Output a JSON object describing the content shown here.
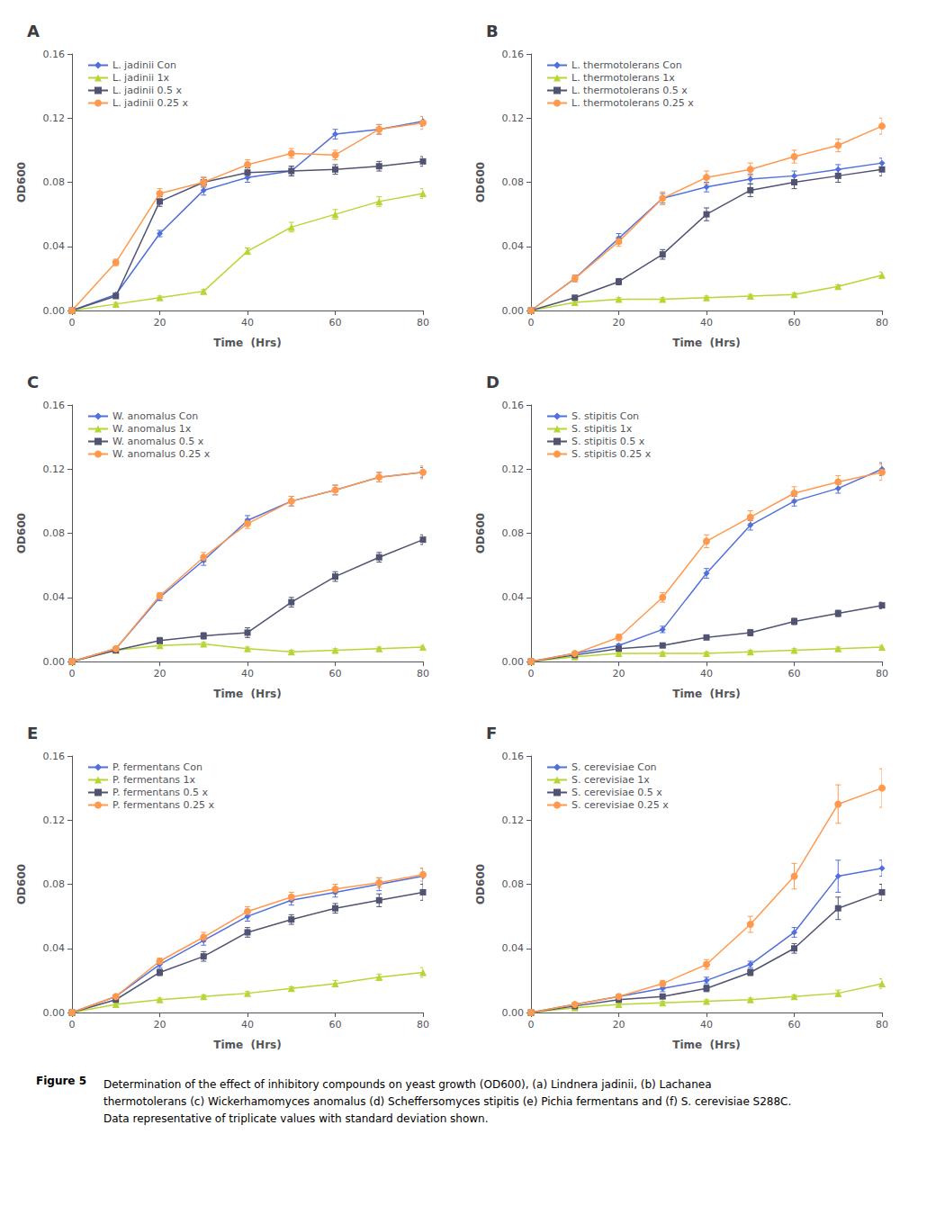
{
  "chart_data": [
    {
      "type": "line",
      "title": "A",
      "xlabel": "Time  (Hrs)",
      "ylabel": "OD600",
      "x": [
        0,
        10,
        20,
        30,
        40,
        50,
        60,
        70,
        80
      ],
      "xlim": [
        0,
        80
      ],
      "xticks": [
        0,
        20,
        40,
        60,
        80
      ],
      "ylim": [
        0,
        0.16
      ],
      "yticks": [
        {
          "value": 0,
          "label": "0.00"
        },
        0.04,
        0.08,
        0.12,
        0.16
      ],
      "grid": false,
      "legend": "upper left",
      "series": [
        {
          "name": "L. jadinii Con",
          "marker": "diamond",
          "values": [
            0,
            0.01,
            0.048,
            0.075,
            0.083,
            0.087,
            0.11,
            0.113,
            0.118
          ],
          "errors": [
            0,
            0.001,
            0.002,
            0.003,
            0.003,
            0.003,
            0.003,
            0.003,
            0.003
          ]
        },
        {
          "name": "L. jadinii 1x",
          "marker": "triangle",
          "values": [
            0,
            0.004,
            0.008,
            0.012,
            0.037,
            0.052,
            0.06,
            0.068,
            0.073
          ],
          "errors": [
            0,
            0.001,
            0.001,
            0.001,
            0.002,
            0.003,
            0.003,
            0.003,
            0.003
          ]
        },
        {
          "name": "L. jadinii 0.5 x",
          "marker": "square",
          "values": [
            0,
            0.009,
            0.068,
            0.08,
            0.086,
            0.087,
            0.088,
            0.09,
            0.093
          ],
          "errors": [
            0,
            0.001,
            0.003,
            0.003,
            0.003,
            0.003,
            0.003,
            0.003,
            0.003
          ]
        },
        {
          "name": "L. jadinii 0.25 x",
          "marker": "circle",
          "values": [
            0,
            0.03,
            0.073,
            0.08,
            0.091,
            0.098,
            0.097,
            0.113,
            0.117
          ],
          "errors": [
            0,
            0.002,
            0.003,
            0.003,
            0.003,
            0.003,
            0.003,
            0.003,
            0.004
          ]
        }
      ]
    },
    {
      "type": "line",
      "title": "B",
      "xlabel": "Time  (Hrs)",
      "ylabel": "OD600",
      "x": [
        0,
        10,
        20,
        30,
        40,
        50,
        60,
        70,
        80
      ],
      "xlim": [
        0,
        80
      ],
      "xticks": [
        0,
        20,
        40,
        60,
        80
      ],
      "ylim": [
        0,
        0.16
      ],
      "yticks": [
        {
          "value": 0,
          "label": "0.00"
        },
        0.04,
        0.08,
        0.12,
        0.16
      ],
      "grid": false,
      "legend": "upper left",
      "series": [
        {
          "name": "L. thermotolerans Con",
          "marker": "diamond",
          "values": [
            0,
            0.02,
            0.045,
            0.07,
            0.077,
            0.082,
            0.084,
            0.088,
            0.092
          ],
          "errors": [
            0,
            0.002,
            0.003,
            0.003,
            0.003,
            0.003,
            0.003,
            0.003,
            0.003
          ]
        },
        {
          "name": "L. thermotolerans 1x",
          "marker": "triangle",
          "values": [
            0,
            0.005,
            0.007,
            0.007,
            0.008,
            0.009,
            0.01,
            0.015,
            0.022
          ],
          "errors": [
            0,
            0.001,
            0.001,
            0.001,
            0.001,
            0.001,
            0.001,
            0.001,
            0.002
          ]
        },
        {
          "name": "L. thermotolerans 0.5 x",
          "marker": "square",
          "values": [
            0,
            0.008,
            0.018,
            0.035,
            0.06,
            0.075,
            0.08,
            0.084,
            0.088
          ],
          "errors": [
            0,
            0.001,
            0.002,
            0.003,
            0.004,
            0.004,
            0.004,
            0.004,
            0.004
          ]
        },
        {
          "name": "L. thermotolerans 0.25 x",
          "marker": "circle",
          "values": [
            0,
            0.02,
            0.043,
            0.07,
            0.083,
            0.088,
            0.096,
            0.103,
            0.115
          ],
          "errors": [
            0,
            0.002,
            0.003,
            0.004,
            0.004,
            0.004,
            0.004,
            0.004,
            0.005
          ]
        }
      ]
    },
    {
      "type": "line",
      "title": "C",
      "xlabel": "Time  (Hrs)",
      "ylabel": "OD600",
      "x": [
        0,
        10,
        20,
        30,
        40,
        50,
        60,
        70,
        80
      ],
      "xlim": [
        0,
        80
      ],
      "xticks": [
        0,
        20,
        40,
        60,
        80
      ],
      "ylim": [
        0,
        0.16
      ],
      "yticks": [
        {
          "value": 0,
          "label": "0.00"
        },
        0.04,
        0.08,
        0.12,
        0.16
      ],
      "grid": false,
      "legend": "upper left",
      "series": [
        {
          "name": "W. anomalus Con",
          "marker": "diamond",
          "values": [
            0,
            0.008,
            0.04,
            0.063,
            0.088,
            0.1,
            0.107,
            0.115,
            0.118
          ],
          "errors": [
            0,
            0.001,
            0.002,
            0.003,
            0.003,
            0.003,
            0.003,
            0.003,
            0.003
          ]
        },
        {
          "name": "W. anomalus 1x",
          "marker": "triangle",
          "values": [
            0,
            0.007,
            0.01,
            0.011,
            0.008,
            0.006,
            0.007,
            0.008,
            0.009
          ],
          "errors": [
            0,
            0.001,
            0.001,
            0.001,
            0.001,
            0.001,
            0.001,
            0.001,
            0.001
          ]
        },
        {
          "name": "W. anomalus 0.5 x",
          "marker": "square",
          "values": [
            0,
            0.007,
            0.013,
            0.016,
            0.018,
            0.037,
            0.053,
            0.065,
            0.076
          ],
          "errors": [
            0,
            0.001,
            0.002,
            0.002,
            0.003,
            0.003,
            0.003,
            0.003,
            0.003
          ]
        },
        {
          "name": "W. anomalus 0.25 x",
          "marker": "circle",
          "values": [
            0,
            0.008,
            0.041,
            0.065,
            0.086,
            0.1,
            0.107,
            0.115,
            0.118
          ],
          "errors": [
            0,
            0.001,
            0.002,
            0.003,
            0.003,
            0.003,
            0.003,
            0.003,
            0.004
          ]
        }
      ]
    },
    {
      "type": "line",
      "title": "D",
      "xlabel": "Time  (Hrs)",
      "ylabel": "OD600",
      "x": [
        0,
        10,
        20,
        30,
        40,
        50,
        60,
        70,
        80
      ],
      "xlim": [
        0,
        80
      ],
      "xticks": [
        0,
        20,
        40,
        60,
        80
      ],
      "ylim": [
        0,
        0.16
      ],
      "yticks": [
        {
          "value": 0,
          "label": "0.00"
        },
        0.04,
        0.08,
        0.12,
        0.16
      ],
      "grid": false,
      "legend": "upper left",
      "series": [
        {
          "name": "S. stipitis Con",
          "marker": "diamond",
          "values": [
            0,
            0.005,
            0.01,
            0.02,
            0.055,
            0.085,
            0.1,
            0.108,
            0.12
          ],
          "errors": [
            0,
            0.001,
            0.001,
            0.002,
            0.003,
            0.003,
            0.003,
            0.003,
            0.004
          ]
        },
        {
          "name": "S. stipitis 1x",
          "marker": "triangle",
          "values": [
            0,
            0.003,
            0.005,
            0.005,
            0.005,
            0.006,
            0.007,
            0.008,
            0.009
          ],
          "errors": [
            0,
            0.001,
            0.001,
            0.001,
            0.001,
            0.001,
            0.001,
            0.001,
            0.001
          ]
        },
        {
          "name": "S. stipitis 0.5 x",
          "marker": "square",
          "values": [
            0,
            0.004,
            0.008,
            0.01,
            0.015,
            0.018,
            0.025,
            0.03,
            0.035
          ],
          "errors": [
            0,
            0.001,
            0.001,
            0.001,
            0.001,
            0.002,
            0.002,
            0.002,
            0.002
          ]
        },
        {
          "name": "S. stipitis 0.25 x",
          "marker": "circle",
          "values": [
            0,
            0.005,
            0.015,
            0.04,
            0.075,
            0.09,
            0.105,
            0.112,
            0.118
          ],
          "errors": [
            0,
            0.001,
            0.002,
            0.003,
            0.004,
            0.004,
            0.004,
            0.004,
            0.005
          ]
        }
      ]
    },
    {
      "type": "line",
      "title": "E",
      "xlabel": "Time  (Hrs)",
      "ylabel": "OD600",
      "x": [
        0,
        10,
        20,
        30,
        40,
        50,
        60,
        70,
        80
      ],
      "xlim": [
        0,
        80
      ],
      "xticks": [
        0,
        20,
        40,
        60,
        80
      ],
      "ylim": [
        0,
        0.16
      ],
      "yticks": [
        {
          "value": 0,
          "label": "0.00"
        },
        0.04,
        0.08,
        0.12,
        0.16
      ],
      "grid": false,
      "legend": "upper left",
      "series": [
        {
          "name": "P. fermentans Con",
          "marker": "diamond",
          "values": [
            0,
            0.01,
            0.03,
            0.045,
            0.06,
            0.07,
            0.075,
            0.08,
            0.085
          ],
          "errors": [
            0,
            0.001,
            0.002,
            0.003,
            0.003,
            0.003,
            0.003,
            0.004,
            0.005
          ]
        },
        {
          "name": "P. fermentans 1x",
          "marker": "triangle",
          "values": [
            0,
            0.005,
            0.008,
            0.01,
            0.012,
            0.015,
            0.018,
            0.022,
            0.025
          ],
          "errors": [
            0,
            0.001,
            0.001,
            0.001,
            0.001,
            0.001,
            0.002,
            0.002,
            0.003
          ]
        },
        {
          "name": "P. fermentans 0.5 x",
          "marker": "square",
          "values": [
            0,
            0.008,
            0.025,
            0.035,
            0.05,
            0.058,
            0.065,
            0.07,
            0.075
          ],
          "errors": [
            0,
            0.001,
            0.002,
            0.003,
            0.003,
            0.003,
            0.003,
            0.004,
            0.005
          ]
        },
        {
          "name": "P. fermentans 0.25 x",
          "marker": "circle",
          "values": [
            0,
            0.01,
            0.032,
            0.047,
            0.063,
            0.072,
            0.077,
            0.081,
            0.086
          ],
          "errors": [
            0,
            0.001,
            0.002,
            0.003,
            0.003,
            0.003,
            0.003,
            0.003,
            0.004
          ]
        }
      ]
    },
    {
      "type": "line",
      "title": "F",
      "xlabel": "Time  (Hrs)",
      "ylabel": "OD600",
      "x": [
        0,
        10,
        20,
        30,
        40,
        50,
        60,
        70,
        80
      ],
      "xlim": [
        0,
        80
      ],
      "xticks": [
        0,
        20,
        40,
        60,
        80
      ],
      "ylim": [
        0,
        0.16
      ],
      "yticks": [
        {
          "value": 0,
          "label": "0.00"
        },
        0.04,
        0.08,
        0.12,
        0.16
      ],
      "grid": false,
      "legend": "upper left",
      "series": [
        {
          "name": "S. cerevisiae Con",
          "marker": "diamond",
          "values": [
            0,
            0.005,
            0.01,
            0.015,
            0.02,
            0.03,
            0.05,
            0.085,
            0.09
          ],
          "errors": [
            0,
            0.001,
            0.001,
            0.002,
            0.002,
            0.002,
            0.003,
            0.01,
            0.005
          ]
        },
        {
          "name": "S. cerevisiae 1x",
          "marker": "triangle",
          "values": [
            0,
            0.003,
            0.005,
            0.006,
            0.007,
            0.008,
            0.01,
            0.012,
            0.018
          ],
          "errors": [
            0,
            0.001,
            0.001,
            0.001,
            0.001,
            0.001,
            0.001,
            0.002,
            0.003
          ]
        },
        {
          "name": "S. cerevisiae 0.5 x",
          "marker": "square",
          "values": [
            0,
            0.004,
            0.008,
            0.01,
            0.015,
            0.025,
            0.04,
            0.065,
            0.075
          ],
          "errors": [
            0,
            0.001,
            0.001,
            0.001,
            0.002,
            0.002,
            0.003,
            0.007,
            0.005
          ]
        },
        {
          "name": "S. cerevisiae 0.25 x",
          "marker": "circle",
          "values": [
            0,
            0.005,
            0.01,
            0.018,
            0.03,
            0.055,
            0.085,
            0.13,
            0.14
          ],
          "errors": [
            0,
            0.001,
            0.001,
            0.002,
            0.003,
            0.005,
            0.008,
            0.012,
            0.012
          ]
        }
      ]
    }
  ],
  "annotations": [
    "Figure 5",
    "Determination of the effect of inhibitory compounds on yeast growth (OD600), (a) Lindnera jadinii, (b) Lachanea\nthermotolerans (c) Wickerhamomyces anomalus (d) Scheffersomyces stipitis (e) Pichia fermentans and (f) S. cerevisiae S288C.\nData representative of triplicate values with standard deviation shown."
  ]
}
